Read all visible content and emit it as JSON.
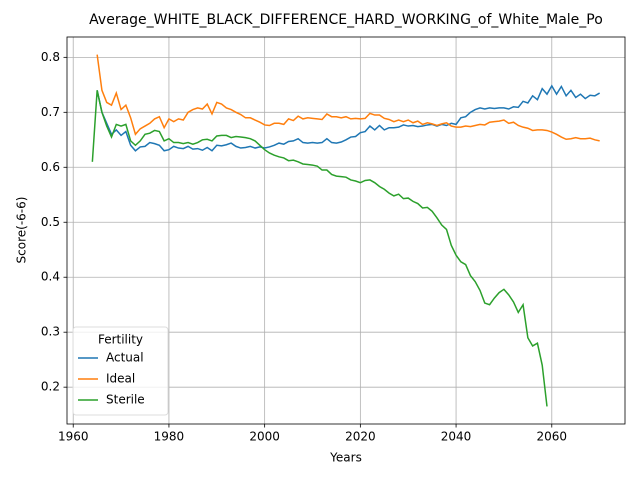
{
  "chart_data": {
    "type": "line",
    "title": "Average_WHITE_BLACK_DIFFERENCE_HARD_WORKING_of_White_Male_Po",
    "xlabel": "Years",
    "ylabel": "Score(-6-6)",
    "x": [
      1964,
      1965,
      1966,
      1967,
      1968,
      1969,
      1970,
      1971,
      1972,
      1973,
      1974,
      1975,
      1976,
      1977,
      1978,
      1979,
      1980,
      1981,
      1982,
      1983,
      1984,
      1985,
      1986,
      1987,
      1988,
      1989,
      1990,
      1991,
      1992,
      1993,
      1994,
      1995,
      1996,
      1997,
      1998,
      1999,
      2000,
      2001,
      2002,
      2003,
      2004,
      2005,
      2006,
      2007,
      2008,
      2009,
      2010,
      2011,
      2012,
      2013,
      2014,
      2015,
      2016,
      2017,
      2018,
      2019,
      2020,
      2021,
      2022,
      2023,
      2024,
      2025,
      2026,
      2027,
      2028,
      2029,
      2030,
      2031,
      2032,
      2033,
      2034,
      2035,
      2036,
      2037,
      2038,
      2039,
      2040,
      2041,
      2042,
      2043,
      2044,
      2045,
      2046,
      2047,
      2048,
      2049,
      2050,
      2051,
      2052,
      2053,
      2054,
      2055,
      2056,
      2057,
      2058,
      2059,
      2060,
      2061,
      2062,
      2063,
      2064,
      2065,
      2066,
      2067,
      2068,
      2069,
      2070
    ],
    "series": [
      {
        "name": "Actual",
        "color": "#1f77b4",
        "values": [
          null,
          0.74,
          0.7,
          0.68,
          0.66,
          0.668,
          0.658,
          0.665,
          0.64,
          0.63,
          0.637,
          0.638,
          0.645,
          0.643,
          0.64,
          0.63,
          0.632,
          0.638,
          0.635,
          0.634,
          0.638,
          0.633,
          0.634,
          0.631,
          0.636,
          0.63,
          0.64,
          0.639,
          0.641,
          0.644,
          0.638,
          0.635,
          0.636,
          0.638,
          0.635,
          0.637,
          0.635,
          0.637,
          0.64,
          0.644,
          0.642,
          0.647,
          0.648,
          0.652,
          0.645,
          0.644,
          0.645,
          0.644,
          0.645,
          0.652,
          0.645,
          0.644,
          0.646,
          0.65,
          0.655,
          0.656,
          0.663,
          0.665,
          0.675,
          0.668,
          0.676,
          0.668,
          0.672,
          0.672,
          0.673,
          0.677,
          0.675,
          0.676,
          0.674,
          0.675,
          0.677,
          0.678,
          0.675,
          0.678,
          0.676,
          0.68,
          0.678,
          0.69,
          0.692,
          0.7,
          0.705,
          0.708,
          0.706,
          0.708,
          0.707,
          0.708,
          0.708,
          0.706,
          0.71,
          0.709,
          0.72,
          0.717,
          0.73,
          0.723,
          0.743,
          0.733,
          0.748,
          0.733,
          0.747,
          0.73,
          0.74,
          0.727,
          0.733,
          0.725,
          0.731,
          0.73,
          0.735
        ]
      },
      {
        "name": "Ideal",
        "color": "#ff7f0e",
        "values": [
          null,
          0.805,
          0.74,
          0.718,
          0.713,
          0.735,
          0.705,
          0.713,
          0.69,
          0.66,
          0.67,
          0.675,
          0.68,
          0.688,
          0.692,
          0.672,
          0.688,
          0.683,
          0.688,
          0.686,
          0.7,
          0.705,
          0.708,
          0.706,
          0.715,
          0.697,
          0.718,
          0.715,
          0.708,
          0.705,
          0.7,
          0.696,
          0.69,
          0.69,
          0.686,
          0.682,
          0.677,
          0.676,
          0.68,
          0.68,
          0.678,
          0.688,
          0.685,
          0.693,
          0.688,
          0.69,
          0.689,
          0.688,
          0.687,
          0.697,
          0.692,
          0.692,
          0.69,
          0.692,
          0.688,
          0.689,
          0.688,
          0.689,
          0.698,
          0.695,
          0.695,
          0.689,
          0.687,
          0.683,
          0.686,
          0.683,
          0.686,
          0.681,
          0.684,
          0.678,
          0.681,
          0.679,
          0.676,
          0.679,
          0.681,
          0.675,
          0.673,
          0.673,
          0.675,
          0.674,
          0.676,
          0.678,
          0.677,
          0.682,
          0.683,
          0.684,
          0.686,
          0.68,
          0.682,
          0.676,
          0.673,
          0.671,
          0.667,
          0.668,
          0.668,
          0.667,
          0.664,
          0.66,
          0.655,
          0.651,
          0.652,
          0.654,
          0.652,
          0.652,
          0.653,
          0.65,
          0.648
        ]
      },
      {
        "name": "Sterile",
        "color": "#2ca02c",
        "values": [
          0.61,
          0.74,
          0.7,
          0.675,
          0.655,
          0.678,
          0.675,
          0.678,
          0.648,
          0.64,
          0.648,
          0.66,
          0.662,
          0.667,
          0.665,
          0.648,
          0.652,
          0.645,
          0.645,
          0.643,
          0.645,
          0.642,
          0.645,
          0.65,
          0.651,
          0.648,
          0.657,
          0.658,
          0.658,
          0.654,
          0.656,
          0.655,
          0.654,
          0.652,
          0.648,
          0.64,
          0.632,
          0.626,
          0.622,
          0.619,
          0.617,
          0.612,
          0.613,
          0.61,
          0.606,
          0.605,
          0.604,
          0.602,
          0.595,
          0.595,
          0.587,
          0.584,
          0.583,
          0.582,
          0.577,
          0.575,
          0.572,
          0.576,
          0.577,
          0.572,
          0.565,
          0.56,
          0.553,
          0.548,
          0.551,
          0.543,
          0.544,
          0.538,
          0.534,
          0.526,
          0.527,
          0.52,
          0.508,
          0.495,
          0.487,
          0.458,
          0.44,
          0.428,
          0.423,
          0.403,
          0.392,
          0.376,
          0.353,
          0.35,
          0.362,
          0.372,
          0.378,
          0.368,
          0.355,
          0.336,
          0.35,
          0.29,
          0.275,
          0.28,
          0.24,
          0.165,
          null,
          null,
          null,
          null,
          null,
          null,
          null,
          null,
          null,
          null,
          null
        ]
      }
    ],
    "xlim": [
      1958.7,
      2075.3
    ],
    "ylim": [
      0.133,
      0.837
    ],
    "xticks": [
      1960,
      1980,
      2000,
      2020,
      2040,
      2060
    ],
    "yticks": [
      0.2,
      0.3,
      0.4,
      0.5,
      0.6,
      0.7,
      0.8
    ],
    "grid": true,
    "legend_title": "Fertility",
    "legend_loc": "lower left"
  }
}
